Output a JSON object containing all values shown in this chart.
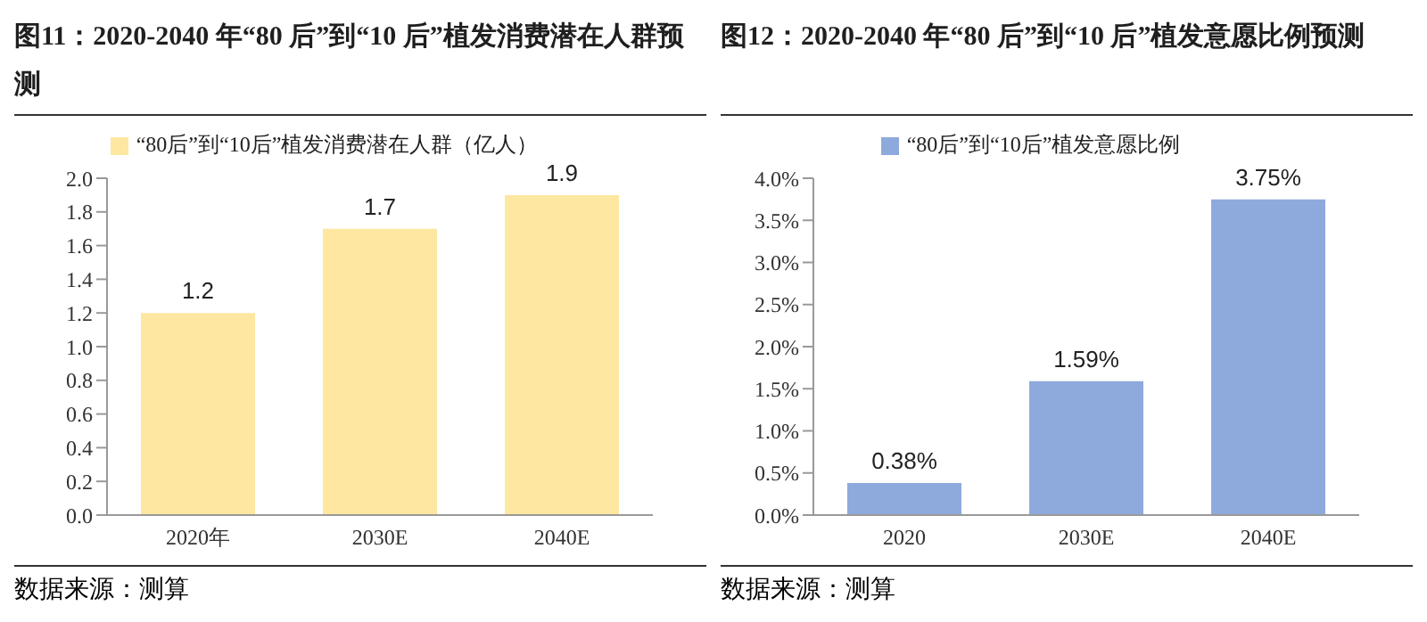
{
  "chart_data": [
    {
      "type": "bar",
      "title": "图11：2020-2040 年“80 后”到“10 后”植发消费潜在人群预测",
      "categories": [
        "2020年",
        "2030E",
        "2040E"
      ],
      "series": [
        {
          "name": "“80后”到“10后”植发消费潜在人群（亿人）",
          "color": "#fde7a1",
          "values": [
            1.2,
            1.7,
            1.9
          ]
        }
      ],
      "ylim": [
        0,
        2
      ],
      "yticks": [
        {
          "value": 0,
          "label": "0.0"
        },
        0.2,
        0.4,
        0.6,
        0.8,
        {
          "value": 1,
          "label": "1.0"
        },
        1.2,
        1.4,
        1.6,
        1.8,
        {
          "value": 2,
          "label": "2.0"
        }
      ],
      "legend": "top",
      "data_labels": true,
      "annotations": [
        "数据来源：测算"
      ]
    },
    {
      "type": "bar",
      "title": "图12：2020-2040 年“80 后”到“10 后”植发意愿比例预测",
      "categories": [
        "2020",
        "2030E",
        "2040E"
      ],
      "series": [
        {
          "name": "“80后”到“10后”植发意愿比例",
          "color": "#8eaadc",
          "values": [
            0.38,
            1.59,
            3.75
          ],
          "value_labels": [
            "0.38%",
            "1.59%",
            "3.75%"
          ]
        }
      ],
      "ylim": [
        0,
        4
      ],
      "yticks": [
        {
          "value": 0,
          "label": "0.0%"
        },
        {
          "value": 0.5,
          "label": "0.5%"
        },
        {
          "value": 1,
          "label": "1.0%"
        },
        {
          "value": 1.5,
          "label": "1.5%"
        },
        {
          "value": 2,
          "label": "2.0%"
        },
        {
          "value": 2.5,
          "label": "2.5%"
        },
        {
          "value": 3,
          "label": "3.0%"
        },
        {
          "value": 3.5,
          "label": "3.5%"
        },
        {
          "value": 4,
          "label": "4.0%"
        }
      ],
      "legend": "top",
      "annotations": [
        "数据来源：测算"
      ]
    }
  ]
}
